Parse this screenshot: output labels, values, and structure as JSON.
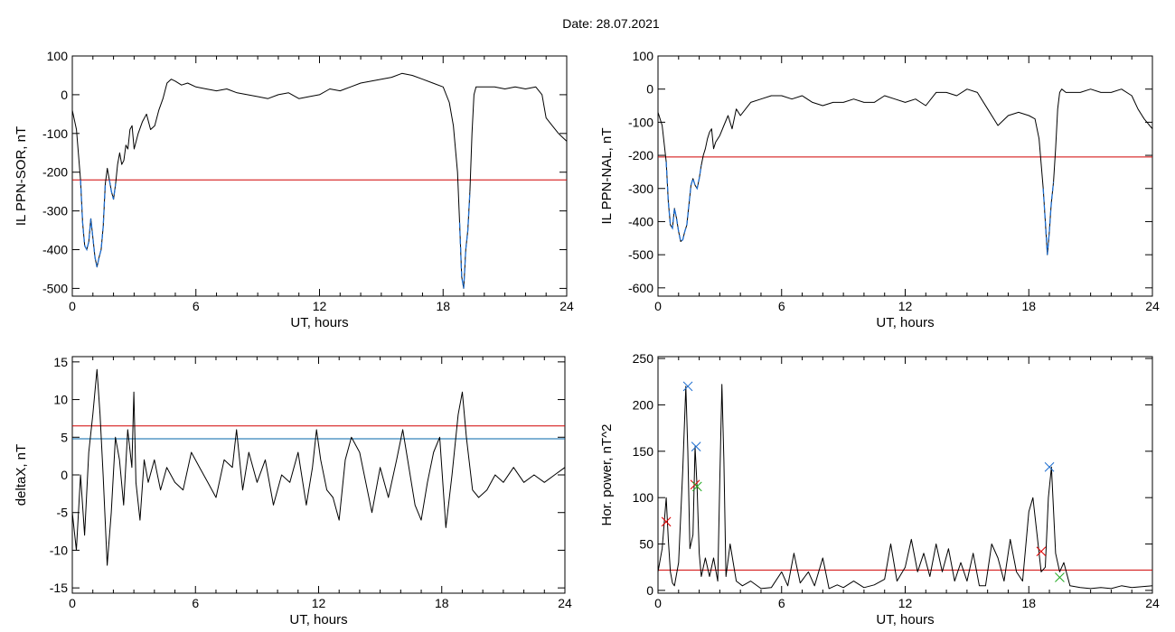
{
  "page_title": "Date:  28.07.2021",
  "colors": {
    "line": "#000000",
    "threshold_red": "#d00000",
    "threshold_blue": "#0066aa",
    "highlight": "#1f6fd1",
    "marker_red": "#e00000",
    "marker_green": "#22aa22"
  },
  "chart_data": [
    {
      "id": "sor",
      "type": "line",
      "title": "",
      "xlabel": "UT, hours",
      "ylabel": "IL PPN-SOR, nT",
      "xlim": [
        0,
        24
      ],
      "ylim": [
        -520,
        100
      ],
      "xticks": [
        0,
        6,
        12,
        18,
        24
      ],
      "yticks": [
        100,
        0,
        -100,
        -200,
        -300,
        -400,
        -500
      ],
      "x": [
        0,
        0.2,
        0.4,
        0.5,
        0.6,
        0.7,
        0.8,
        0.9,
        1.0,
        1.1,
        1.2,
        1.3,
        1.4,
        1.5,
        1.6,
        1.7,
        1.8,
        1.9,
        2.0,
        2.1,
        2.2,
        2.3,
        2.4,
        2.5,
        2.6,
        2.7,
        2.8,
        2.9,
        3.0,
        3.2,
        3.4,
        3.6,
        3.8,
        4.0,
        4.2,
        4.4,
        4.6,
        4.8,
        5.0,
        5.3,
        5.6,
        6.0,
        6.5,
        7.0,
        7.5,
        8.0,
        8.5,
        9.0,
        9.5,
        10.0,
        10.5,
        11.0,
        11.5,
        12.0,
        12.5,
        13.0,
        13.5,
        14.0,
        14.5,
        15.0,
        15.5,
        16.0,
        16.5,
        17.0,
        17.5,
        18.0,
        18.3,
        18.5,
        18.7,
        18.8,
        18.9,
        19.0,
        19.05,
        19.1,
        19.2,
        19.3,
        19.4,
        19.5,
        19.6,
        19.8,
        20.0,
        20.5,
        21.0,
        21.5,
        22.0,
        22.5,
        22.8,
        23.0,
        23.3,
        23.6,
        23.8,
        24.0
      ],
      "values": [
        -40,
        -90,
        -220,
        -330,
        -390,
        -400,
        -380,
        -320,
        -370,
        -420,
        -445,
        -420,
        -400,
        -340,
        -230,
        -190,
        -220,
        -250,
        -270,
        -230,
        -180,
        -150,
        -180,
        -170,
        -130,
        -140,
        -90,
        -80,
        -140,
        -100,
        -70,
        -50,
        -90,
        -80,
        -40,
        -10,
        30,
        40,
        35,
        25,
        30,
        20,
        15,
        10,
        15,
        5,
        0,
        -5,
        -10,
        0,
        5,
        -10,
        -5,
        0,
        15,
        10,
        20,
        30,
        35,
        40,
        45,
        55,
        50,
        40,
        30,
        20,
        -20,
        -80,
        -200,
        -330,
        -470,
        -500,
        -450,
        -400,
        -350,
        -250,
        -100,
        0,
        20,
        20,
        20,
        20,
        15,
        20,
        15,
        20,
        0,
        -60,
        -80,
        -100,
        -110,
        -120
      ],
      "thresholds": [
        {
          "y": -220,
          "color": "#d00000"
        }
      ]
    },
    {
      "id": "nal",
      "type": "line",
      "title": "",
      "xlabel": "UT, hours",
      "ylabel": "IL PPN-NAL, nT",
      "xlim": [
        0,
        24
      ],
      "ylim": [
        -625,
        100
      ],
      "xticks": [
        0,
        6,
        12,
        18,
        24
      ],
      "yticks": [
        100,
        0,
        -100,
        -200,
        -300,
        -400,
        -500,
        -600
      ],
      "x": [
        0,
        0.2,
        0.4,
        0.5,
        0.6,
        0.7,
        0.8,
        0.9,
        1.0,
        1.1,
        1.2,
        1.3,
        1.4,
        1.5,
        1.6,
        1.7,
        1.8,
        1.9,
        2.0,
        2.1,
        2.2,
        2.3,
        2.4,
        2.5,
        2.6,
        2.7,
        2.8,
        3.0,
        3.2,
        3.4,
        3.6,
        3.8,
        4.0,
        4.5,
        5.0,
        5.5,
        6.0,
        6.5,
        7.0,
        7.5,
        8.0,
        8.5,
        9.0,
        9.5,
        10.0,
        10.5,
        11.0,
        11.5,
        12.0,
        12.5,
        13.0,
        13.5,
        14.0,
        14.5,
        15.0,
        15.5,
        16.0,
        16.5,
        17.0,
        17.5,
        18.0,
        18.3,
        18.5,
        18.7,
        18.8,
        18.9,
        19.0,
        19.05,
        19.1,
        19.2,
        19.3,
        19.4,
        19.5,
        19.6,
        19.8,
        20.0,
        20.5,
        21.0,
        21.5,
        22.0,
        22.5,
        23.0,
        23.3,
        23.6,
        24.0
      ],
      "values": [
        -70,
        -110,
        -220,
        -340,
        -410,
        -420,
        -360,
        -390,
        -430,
        -460,
        -455,
        -430,
        -410,
        -350,
        -290,
        -270,
        -290,
        -300,
        -270,
        -230,
        -200,
        -180,
        -150,
        -130,
        -120,
        -180,
        -160,
        -140,
        -110,
        -80,
        -120,
        -60,
        -80,
        -40,
        -30,
        -20,
        -20,
        -30,
        -20,
        -40,
        -50,
        -40,
        -40,
        -30,
        -40,
        -40,
        -20,
        -30,
        -40,
        -30,
        -50,
        -10,
        -10,
        -20,
        0,
        -10,
        -60,
        -110,
        -80,
        -70,
        -80,
        -90,
        -150,
        -300,
        -400,
        -500,
        -430,
        -380,
        -340,
        -280,
        -180,
        -60,
        -10,
        0,
        -10,
        -10,
        -10,
        0,
        -10,
        -10,
        0,
        -20,
        -60,
        -90,
        -120
      ],
      "thresholds": [
        {
          "y": -205,
          "color": "#d00000"
        }
      ]
    },
    {
      "id": "deltax",
      "type": "line",
      "title": "",
      "xlabel": "UT, hours",
      "ylabel": "deltaX, nT",
      "xlim": [
        0,
        24
      ],
      "ylim": [
        -15.7,
        15.7
      ],
      "xticks": [
        0,
        6,
        12,
        18,
        24
      ],
      "yticks": [
        15,
        10,
        5,
        0,
        -5,
        -10,
        -15
      ],
      "x": [
        0,
        0.2,
        0.4,
        0.6,
        0.8,
        1.0,
        1.2,
        1.35,
        1.5,
        1.7,
        1.9,
        2.1,
        2.3,
        2.5,
        2.7,
        2.9,
        3.0,
        3.1,
        3.3,
        3.5,
        3.7,
        4.0,
        4.3,
        4.6,
        5.0,
        5.4,
        5.8,
        6.2,
        6.6,
        7.0,
        7.4,
        7.8,
        8.0,
        8.3,
        8.6,
        9.0,
        9.4,
        9.8,
        10.2,
        10.6,
        11.0,
        11.4,
        11.7,
        11.9,
        12.1,
        12.4,
        12.7,
        13.0,
        13.3,
        13.6,
        14.0,
        14.3,
        14.6,
        15.0,
        15.4,
        15.8,
        16.1,
        16.4,
        16.7,
        17.0,
        17.3,
        17.6,
        17.9,
        18.2,
        18.5,
        18.8,
        19.0,
        19.2,
        19.5,
        19.8,
        20.2,
        20.6,
        21.0,
        21.5,
        22.0,
        22.5,
        23.0,
        23.5,
        24.0
      ],
      "values": [
        -5,
        -10,
        0,
        -8,
        3,
        8,
        14,
        8,
        0,
        -12,
        -5,
        5,
        2,
        -4,
        6,
        1,
        11,
        -1,
        -6,
        2,
        -1,
        2,
        -2,
        1,
        -1,
        -2,
        3,
        1,
        -1,
        -3,
        2,
        1,
        6,
        -2,
        3,
        -1,
        2,
        -4,
        0,
        -1,
        3,
        -4,
        1,
        6,
        2,
        -2,
        -3,
        -6,
        2,
        5,
        3,
        -1,
        -5,
        1,
        -3,
        2,
        6,
        1,
        -4,
        -6,
        -1,
        3,
        5,
        -7,
        0,
        8,
        11,
        5,
        -2,
        -3,
        -2,
        0,
        -1,
        1,
        -1,
        0,
        -1,
        0,
        1
      ],
      "thresholds": [
        {
          "y": 6.5,
          "color": "#d00000"
        },
        {
          "y": 4.8,
          "color": "#0066aa"
        }
      ]
    },
    {
      "id": "power",
      "type": "line",
      "title": "",
      "xlabel": "UT, hours",
      "ylabel": "Hor. power, nT^2",
      "xlim": [
        0,
        24
      ],
      "ylim": [
        -3,
        252
      ],
      "xticks": [
        0,
        6,
        12,
        18,
        24
      ],
      "yticks": [
        250,
        200,
        150,
        100,
        50,
        0
      ],
      "x": [
        0,
        0.2,
        0.4,
        0.5,
        0.6,
        0.7,
        0.8,
        1.0,
        1.2,
        1.35,
        1.45,
        1.55,
        1.7,
        1.8,
        1.9,
        2.0,
        2.1,
        2.3,
        2.5,
        2.7,
        2.9,
        3.0,
        3.1,
        3.2,
        3.3,
        3.5,
        3.8,
        4.1,
        4.5,
        5.0,
        5.5,
        6.0,
        6.3,
        6.6,
        6.9,
        7.3,
        7.6,
        8.0,
        8.3,
        8.7,
        9.0,
        9.5,
        10.0,
        10.5,
        11.0,
        11.3,
        11.6,
        12.0,
        12.3,
        12.6,
        12.9,
        13.2,
        13.5,
        13.8,
        14.1,
        14.4,
        14.7,
        15.0,
        15.3,
        15.6,
        15.9,
        16.2,
        16.5,
        16.8,
        17.1,
        17.4,
        17.7,
        18.0,
        18.2,
        18.4,
        18.6,
        18.8,
        18.95,
        19.1,
        19.3,
        19.5,
        19.7,
        20.0,
        20.5,
        21.0,
        21.5,
        22.0,
        22.5,
        23.0,
        23.5,
        24.0
      ],
      "values": [
        20,
        45,
        100,
        55,
        20,
        8,
        5,
        30,
        130,
        220,
        150,
        45,
        60,
        155,
        110,
        40,
        15,
        35,
        15,
        35,
        10,
        120,
        222,
        140,
        15,
        50,
        10,
        5,
        10,
        2,
        3,
        20,
        5,
        40,
        8,
        20,
        5,
        35,
        2,
        6,
        3,
        10,
        3,
        6,
        12,
        50,
        10,
        25,
        55,
        20,
        40,
        15,
        50,
        20,
        45,
        10,
        30,
        10,
        40,
        5,
        5,
        50,
        35,
        10,
        55,
        20,
        10,
        85,
        100,
        60,
        20,
        25,
        100,
        133,
        40,
        20,
        30,
        5,
        3,
        2,
        3,
        2,
        5,
        3,
        4,
        5
      ],
      "thresholds": [
        {
          "y": 22,
          "color": "#d00000"
        }
      ],
      "markers": [
        {
          "x": 0.4,
          "y": 74,
          "symbol": "x",
          "color": "#e00000"
        },
        {
          "x": 1.45,
          "y": 220,
          "symbol": "x",
          "color": "#1f6fd1"
        },
        {
          "x": 1.85,
          "y": 155,
          "symbol": "x",
          "color": "#1f6fd1"
        },
        {
          "x": 1.8,
          "y": 114,
          "symbol": "x",
          "color": "#e00000"
        },
        {
          "x": 1.9,
          "y": 112,
          "symbol": "x",
          "color": "#22aa22"
        },
        {
          "x": 18.6,
          "y": 42,
          "symbol": "x",
          "color": "#e00000"
        },
        {
          "x": 19.0,
          "y": 133,
          "symbol": "x",
          "color": "#1f6fd1"
        },
        {
          "x": 19.5,
          "y": 14,
          "symbol": "x",
          "color": "#22aa22"
        }
      ]
    }
  ]
}
